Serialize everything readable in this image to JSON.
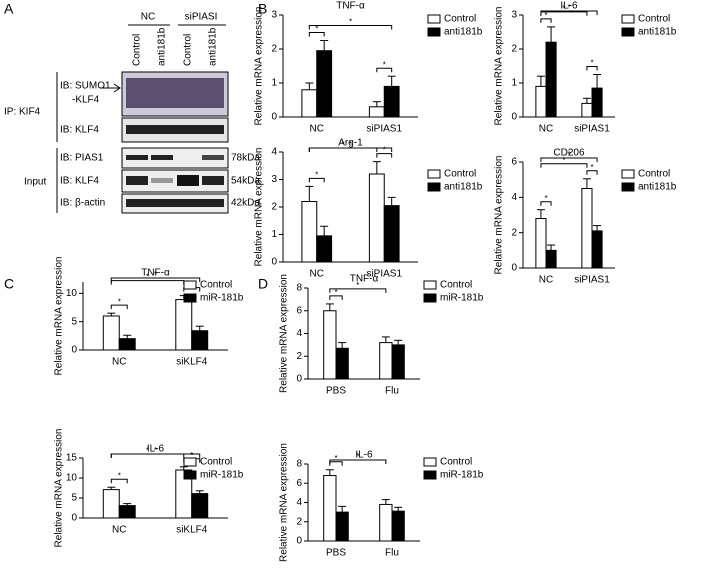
{
  "panels": [
    "A",
    "B",
    "C",
    "D"
  ],
  "blot": {
    "groups": [
      "NC",
      "siPIASI"
    ],
    "lanes": [
      "Control",
      "anti181b",
      "Control",
      "anti181b"
    ],
    "ip_label": "IP: KIF4",
    "input_label": "Input",
    "rows": [
      [
        "IB: SUMO1",
        "-KLF4"
      ],
      [
        "IB: KLF4"
      ],
      [
        "IB: PIAS1"
      ],
      [
        "IB: KLF4"
      ],
      [
        "IB: β-actin"
      ]
    ],
    "sizes": [
      "78kDa",
      "54kDa",
      "42kDa"
    ]
  },
  "chart_data": [
    {
      "type": "bar",
      "title": "TNF-α",
      "y_label": "Relative mRNA expression",
      "categories": [
        "NC",
        "siPIAS1"
      ],
      "ylim": [
        0,
        3
      ],
      "yticks": [
        0,
        1,
        2,
        3
      ],
      "annotations": [
        "*",
        "*",
        "*"
      ],
      "series": [
        {
          "name": "Control",
          "color": "#ffffff",
          "values": [
            0.8,
            0.3
          ],
          "errors": [
            0.2,
            0.15
          ]
        },
        {
          "name": "anti181b",
          "color": "#000000",
          "values": [
            1.95,
            0.9
          ],
          "errors": [
            0.3,
            0.3
          ]
        }
      ]
    },
    {
      "type": "bar",
      "title": "IL-6",
      "y_label": "Relative mRNA expression",
      "categories": [
        "NC",
        "siPIAS1"
      ],
      "ylim": [
        0,
        3
      ],
      "yticks": [
        0,
        1,
        2,
        3
      ],
      "annotations": [
        "*",
        "*",
        "*",
        "*"
      ],
      "series": [
        {
          "name": "Control",
          "color": "#ffffff",
          "values": [
            0.9,
            0.4
          ],
          "errors": [
            0.3,
            0.15
          ]
        },
        {
          "name": "anti181b",
          "color": "#000000",
          "values": [
            2.2,
            0.85
          ],
          "errors": [
            0.45,
            0.4
          ]
        }
      ]
    },
    {
      "type": "bar",
      "title": "Arg-1",
      "y_label": "Relative mRNA expression",
      "categories": [
        "NC",
        "siPIAS1"
      ],
      "ylim": [
        0,
        4
      ],
      "yticks": [
        0,
        1,
        2,
        3,
        4
      ],
      "annotations": [
        "*",
        "*",
        "*",
        "*"
      ],
      "series": [
        {
          "name": "Control",
          "color": "#ffffff",
          "values": [
            2.2,
            3.2
          ],
          "errors": [
            0.55,
            0.45
          ]
        },
        {
          "name": "anti181b",
          "color": "#000000",
          "values": [
            0.95,
            2.05
          ],
          "errors": [
            0.35,
            0.3
          ]
        }
      ]
    },
    {
      "type": "bar",
      "title": "CD206",
      "y_label": "Relative mRNA expression",
      "categories": [
        "NC",
        "siPIAS1"
      ],
      "ylim": [
        0,
        6
      ],
      "yticks": [
        0,
        2,
        4,
        6
      ],
      "annotations": [
        "*",
        "*",
        "*",
        "*"
      ],
      "series": [
        {
          "name": "Control",
          "color": "#ffffff",
          "values": [
            2.8,
            4.5
          ],
          "errors": [
            0.5,
            0.55
          ]
        },
        {
          "name": "anti181b",
          "color": "#000000",
          "values": [
            1.0,
            2.1
          ],
          "errors": [
            0.3,
            0.3
          ]
        }
      ]
    },
    {
      "type": "bar",
      "title": "TNF-α",
      "y_label": "Relative mRNA expression",
      "categories": [
        "NC",
        "siKLF4"
      ],
      "ylim": [
        0,
        12
      ],
      "yticks": [
        0,
        5,
        10
      ],
      "annotations": [
        "*",
        "*",
        "*",
        "*"
      ],
      "series": [
        {
          "name": "Control",
          "color": "#ffffff",
          "values": [
            6.0,
            8.9
          ],
          "errors": [
            0.5,
            0.7
          ]
        },
        {
          "name": "miR-181b",
          "color": "#000000",
          "values": [
            2.0,
            3.4
          ],
          "errors": [
            0.6,
            0.8
          ]
        }
      ]
    },
    {
      "type": "bar",
      "title": "IL-6",
      "y_label": "Relative mRNA expression",
      "categories": [
        "NC",
        "siKLF4"
      ],
      "ylim": [
        0,
        15
      ],
      "yticks": [
        0,
        5,
        10,
        15
      ],
      "annotations": [
        "*",
        "*",
        "*",
        "*"
      ],
      "series": [
        {
          "name": "Control",
          "color": "#ffffff",
          "values": [
            7.1,
            12.0
          ],
          "errors": [
            0.6,
            0.8
          ]
        },
        {
          "name": "miR-181b",
          "color": "#000000",
          "values": [
            3.1,
            6.1
          ],
          "errors": [
            0.5,
            0.7
          ]
        }
      ]
    },
    {
      "type": "bar",
      "title": "TNF-α",
      "y_label": "Relative mRNA expression",
      "categories": [
        "PBS",
        "Flu"
      ],
      "ylim": [
        0,
        8
      ],
      "yticks": [
        0,
        2,
        4,
        6,
        8
      ],
      "annotations": [
        "*",
        "*"
      ],
      "series": [
        {
          "name": "Control",
          "color": "#ffffff",
          "values": [
            6.0,
            3.2
          ],
          "errors": [
            0.6,
            0.5
          ]
        },
        {
          "name": "miR-181b",
          "color": "#000000",
          "values": [
            2.7,
            3.0
          ],
          "errors": [
            0.5,
            0.4
          ]
        }
      ]
    },
    {
      "type": "bar",
      "title": "IL-6",
      "y_label": "Relative mRNA expression",
      "categories": [
        "PBS",
        "Flu"
      ],
      "ylim": [
        0,
        8
      ],
      "yticks": [
        0,
        2,
        4,
        6,
        8
      ],
      "annotations": [
        "*",
        "*"
      ],
      "series": [
        {
          "name": "Control",
          "color": "#ffffff",
          "values": [
            6.8,
            3.8
          ],
          "errors": [
            0.6,
            0.5
          ]
        },
        {
          "name": "miR-181b",
          "color": "#000000",
          "values": [
            3.0,
            3.1
          ],
          "errors": [
            0.6,
            0.4
          ]
        }
      ]
    }
  ]
}
